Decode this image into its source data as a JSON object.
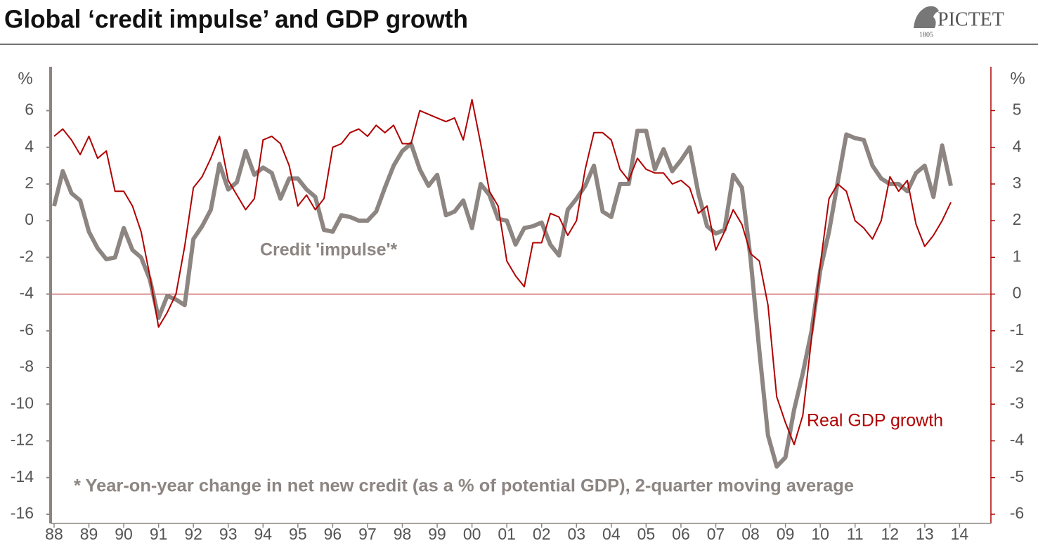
{
  "logo": {
    "name": "PICTET",
    "year": "1805"
  },
  "chart_data": {
    "type": "line",
    "title": "Global ‘credit impulse’ and GDP growth",
    "y_unit": "%",
    "y2_unit": "%",
    "footnote": "* Year-on-year change in net new credit (as a % of potential GDP), 2-quarter moving average",
    "x": [
      1988,
      1988.25,
      1988.5,
      1988.75,
      1989,
      1989.25,
      1989.5,
      1989.75,
      1990,
      1990.25,
      1990.5,
      1990.75,
      1991,
      1991.25,
      1991.5,
      1991.75,
      1992,
      1992.25,
      1992.5,
      1992.75,
      1993,
      1993.25,
      1993.5,
      1993.75,
      1994,
      1994.25,
      1994.5,
      1994.75,
      1995,
      1995.25,
      1995.5,
      1995.75,
      1996,
      1996.25,
      1996.5,
      1996.75,
      1997,
      1997.25,
      1997.5,
      1997.75,
      1998,
      1998.25,
      1998.5,
      1998.75,
      1999,
      1999.25,
      1999.5,
      1999.75,
      2000,
      2000.25,
      2000.5,
      2000.75,
      2001,
      2001.25,
      2001.5,
      2001.75,
      2002,
      2002.25,
      2002.5,
      2002.75,
      2003,
      2003.25,
      2003.5,
      2003.75,
      2004,
      2004.25,
      2004.5,
      2004.75,
      2005,
      2005.25,
      2005.5,
      2005.75,
      2006,
      2006.25,
      2006.5,
      2006.75,
      2007,
      2007.25,
      2007.5,
      2007.75,
      2008,
      2008.25,
      2008.5,
      2008.75,
      2009,
      2009.25,
      2009.5,
      2009.75,
      2010,
      2010.25,
      2010.5,
      2010.75,
      2011,
      2011.25,
      2011.5,
      2011.75,
      2012,
      2012.25,
      2012.5,
      2012.75,
      2013,
      2013.25,
      2013.5,
      2013.75
    ],
    "series": [
      {
        "name": "Credit 'impulse'*",
        "color": "#8c8581",
        "axis": "y",
        "values": [
          0.8,
          2.7,
          1.5,
          1.1,
          -0.6,
          -1.5,
          -2.1,
          -2.0,
          -0.4,
          -1.6,
          -2.0,
          -3.2,
          -5.3,
          -4.1,
          -4.3,
          -4.6,
          -1.0,
          -0.3,
          0.6,
          3.1,
          1.7,
          2.1,
          3.8,
          2.5,
          2.9,
          2.6,
          1.2,
          2.3,
          2.3,
          1.7,
          1.3,
          -0.5,
          -0.6,
          0.3,
          0.2,
          0.0,
          0.0,
          0.5,
          1.8,
          3.0,
          3.8,
          4.2,
          2.8,
          1.9,
          2.5,
          0.3,
          0.5,
          1.1,
          -0.4,
          2.0,
          1.4,
          0.1,
          0.0,
          -1.3,
          -0.4,
          -0.3,
          -0.1,
          -1.3,
          -1.9,
          0.6,
          1.2,
          1.9,
          3.0,
          0.5,
          0.2,
          2.0,
          2.0,
          4.9,
          4.9,
          2.8,
          3.9,
          2.7,
          3.3,
          4.0,
          1.5,
          -0.3,
          -0.7,
          -0.5,
          2.5,
          1.8,
          -2.1,
          -7.1,
          -11.7,
          -13.4,
          -12.9,
          -10.3,
          -8.3,
          -6.0,
          -2.7,
          -0.6,
          2.1,
          4.7,
          4.5,
          4.4,
          3.0,
          2.3,
          2.0,
          2.0,
          1.6,
          2.6,
          3.0,
          1.3,
          4.1,
          1.9
        ]
      },
      {
        "name": "Real GDP growth",
        "color": "#b00000",
        "axis": "y2",
        "values": [
          4.3,
          4.5,
          4.2,
          3.8,
          4.3,
          3.7,
          3.9,
          2.8,
          2.8,
          2.4,
          1.7,
          0.5,
          -0.9,
          -0.5,
          0.0,
          1.3,
          2.9,
          3.2,
          3.7,
          4.3,
          3.1,
          2.7,
          2.3,
          2.6,
          4.2,
          4.3,
          4.1,
          3.5,
          2.4,
          2.7,
          2.3,
          2.6,
          4.0,
          4.1,
          4.4,
          4.5,
          4.3,
          4.6,
          4.4,
          4.6,
          4.1,
          4.1,
          5.0,
          4.9,
          4.8,
          4.7,
          4.8,
          4.2,
          5.3,
          4.1,
          2.8,
          2.4,
          0.9,
          0.5,
          0.2,
          1.4,
          1.4,
          2.2,
          2.1,
          1.6,
          2.0,
          3.4,
          4.4,
          4.4,
          4.2,
          3.4,
          3.1,
          3.7,
          3.4,
          3.3,
          3.3,
          3.0,
          3.1,
          2.9,
          2.2,
          2.4,
          1.2,
          1.7,
          2.3,
          1.9,
          1.1,
          0.9,
          -0.3,
          -2.8,
          -3.5,
          -4.1,
          -3.3,
          -1.2,
          0.8,
          2.6,
          3.0,
          2.8,
          2.0,
          1.8,
          1.5,
          2.0,
          3.2,
          2.8,
          3.1,
          1.9,
          1.3,
          1.6,
          2.0,
          2.5
        ]
      }
    ],
    "xlim": [
      1987.9,
      2014.9
    ],
    "xticks": [
      {
        "value": 1988,
        "label": "88"
      },
      {
        "value": 1989,
        "label": "89"
      },
      {
        "value": 1990,
        "label": "90"
      },
      {
        "value": 1991,
        "label": "91"
      },
      {
        "value": 1992,
        "label": "92"
      },
      {
        "value": 1993,
        "label": "93"
      },
      {
        "value": 1994,
        "label": "94"
      },
      {
        "value": 1995,
        "label": "95"
      },
      {
        "value": 1996,
        "label": "96"
      },
      {
        "value": 1997,
        "label": "97"
      },
      {
        "value": 1998,
        "label": "98"
      },
      {
        "value": 1999,
        "label": "99"
      },
      {
        "value": 2000,
        "label": "00"
      },
      {
        "value": 2001,
        "label": "01"
      },
      {
        "value": 2002,
        "label": "02"
      },
      {
        "value": 2003,
        "label": "03"
      },
      {
        "value": 2004,
        "label": "04"
      },
      {
        "value": 2005,
        "label": "05"
      },
      {
        "value": 2006,
        "label": "06"
      },
      {
        "value": 2007,
        "label": "07"
      },
      {
        "value": 2008,
        "label": "08"
      },
      {
        "value": 2009,
        "label": "09"
      },
      {
        "value": 2010,
        "label": "10"
      },
      {
        "value": 2011,
        "label": "11"
      },
      {
        "value": 2012,
        "label": "12"
      },
      {
        "value": 2013,
        "label": "13"
      },
      {
        "value": 2014,
        "label": "14"
      }
    ],
    "ylim": [
      -16.5,
      8.2
    ],
    "yticks": [
      6,
      4,
      2,
      0,
      -2,
      -4,
      -6,
      -8,
      -10,
      -12,
      -14,
      -16
    ],
    "y2lim": [
      -6.25,
      6.1
    ],
    "y2ticks": [
      5,
      4,
      3,
      2,
      1,
      0,
      -1,
      -2,
      -3,
      -4,
      -5,
      -6
    ],
    "zero_line": true
  }
}
